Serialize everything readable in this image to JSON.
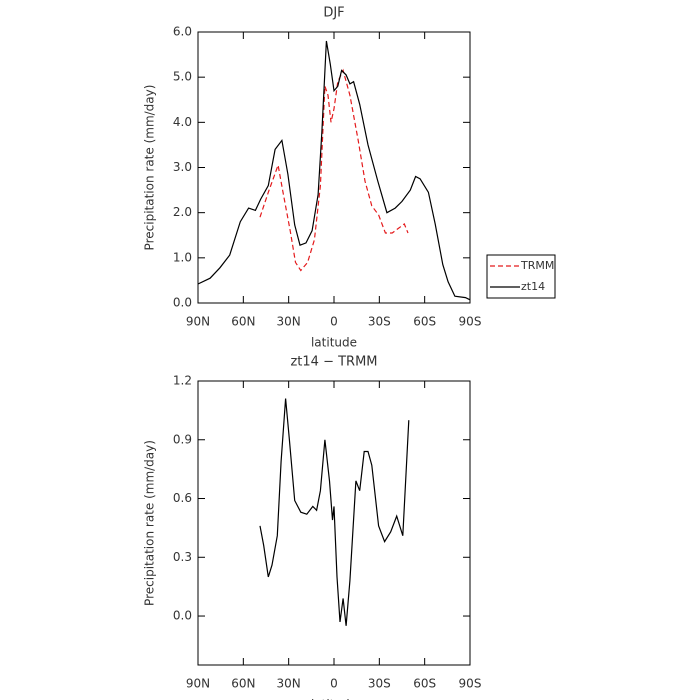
{
  "chart_data": [
    {
      "type": "line",
      "title": "DJF",
      "xlabel": "latitude",
      "ylabel": "Precipitation rate (mm/day)",
      "xlim": [
        90,
        -90
      ],
      "ylim": [
        0,
        6
      ],
      "xticks": [
        {
          "value": 90,
          "label": "90N"
        },
        {
          "value": 60,
          "label": "60N"
        },
        {
          "value": 30,
          "label": "30N"
        },
        0,
        {
          "value": -30,
          "label": "30S"
        },
        {
          "value": -60,
          "label": "60S"
        },
        {
          "value": -90,
          "label": "90S"
        }
      ],
      "yticks": [
        {
          "value": 0,
          "label": "0.0"
        },
        {
          "value": 1,
          "label": "1.0"
        },
        {
          "value": 2,
          "label": "2.0"
        },
        {
          "value": 3,
          "label": "3.0"
        },
        {
          "value": 4,
          "label": "4.0"
        },
        {
          "value": 5,
          "label": "5.0"
        },
        {
          "value": 6,
          "label": "6.0"
        }
      ],
      "legend": "right",
      "series": [
        {
          "name": "TRMM",
          "color": "#e41a1c",
          "dash": true,
          "x": [
            49,
            43.5,
            37,
            34,
            29,
            25.5,
            22,
            17.5,
            13,
            9,
            6,
            4,
            2,
            0,
            -2.5,
            -6,
            -10.5,
            -16,
            -20.5,
            -25,
            -29.5,
            -34,
            -38.5,
            -42.5,
            -46.5,
            -49
          ],
          "values": [
            1.9,
            2.45,
            3.05,
            2.5,
            1.6,
            0.9,
            0.72,
            0.9,
            1.4,
            2.6,
            4.8,
            4.6,
            4.0,
            4.3,
            4.9,
            5.15,
            4.6,
            3.6,
            2.7,
            2.15,
            1.95,
            1.55,
            1.55,
            1.65,
            1.75,
            1.55
          ]
        },
        {
          "name": "zt14",
          "color": "#000000",
          "dash": false,
          "x": [
            90,
            82,
            75.5,
            69,
            62,
            56.5,
            52,
            48.5,
            43.5,
            39,
            34.5,
            30.5,
            26,
            22.5,
            18.5,
            14.5,
            10.5,
            8,
            5,
            2.5,
            0,
            -2.5,
            -5,
            -8,
            -10.5,
            -13,
            -17,
            -22.5,
            -29,
            -35,
            -40.5,
            -45,
            -50.5,
            -54,
            -57,
            -62.5,
            -67,
            -72,
            -75.5,
            -80,
            -87,
            -90
          ],
          "values": [
            0.42,
            0.55,
            0.78,
            1.06,
            1.8,
            2.1,
            2.05,
            2.3,
            2.6,
            3.4,
            3.6,
            2.85,
            1.73,
            1.28,
            1.33,
            1.6,
            2.4,
            3.8,
            5.8,
            5.3,
            4.7,
            4.8,
            5.15,
            5.05,
            4.85,
            4.9,
            4.4,
            3.5,
            2.7,
            2.0,
            2.1,
            2.25,
            2.5,
            2.8,
            2.75,
            2.45,
            1.75,
            0.85,
            0.47,
            0.15,
            0.12,
            0.07
          ]
        }
      ]
    },
    {
      "type": "line",
      "title": "zt14 − TRMM",
      "xlabel": "latitude",
      "ylabel": "Precipitation rate (mm/day)",
      "xlim": [
        90,
        -90
      ],
      "ylim": [
        -0.25,
        1.2
      ],
      "xticks": [
        {
          "value": 90,
          "label": "90N"
        },
        {
          "value": 60,
          "label": "60N"
        },
        {
          "value": 30,
          "label": "30N"
        },
        0,
        {
          "value": -30,
          "label": "30S"
        },
        {
          "value": -60,
          "label": "60S"
        },
        {
          "value": -90,
          "label": "90S"
        }
      ],
      "yticks": [
        {
          "value": 0,
          "label": "0.0"
        },
        0.3,
        0.6,
        0.9,
        1.2
      ],
      "series": [
        {
          "color": "#000000",
          "dash": false,
          "x": [
            49,
            46.5,
            43.5,
            41,
            37.5,
            35,
            32,
            29.5,
            26,
            22,
            18,
            14,
            11.5,
            9,
            6,
            3,
            1,
            0,
            -2,
            -4,
            -6,
            -8,
            -10.5,
            -14.5,
            -17,
            -20,
            -22.5,
            -25,
            -29.5,
            -33.5,
            -37.5,
            -41.5,
            -45.5,
            -49.5
          ],
          "values": [
            0.46,
            0.36,
            0.2,
            0.26,
            0.41,
            0.79,
            1.11,
            0.9,
            0.59,
            0.53,
            0.52,
            0.56,
            0.54,
            0.64,
            0.9,
            0.69,
            0.49,
            0.56,
            0.2,
            -0.03,
            0.09,
            -0.05,
            0.18,
            0.69,
            0.64,
            0.84,
            0.84,
            0.77,
            0.46,
            0.38,
            0.43,
            0.51,
            0.41,
            1.0
          ]
        }
      ]
    }
  ]
}
